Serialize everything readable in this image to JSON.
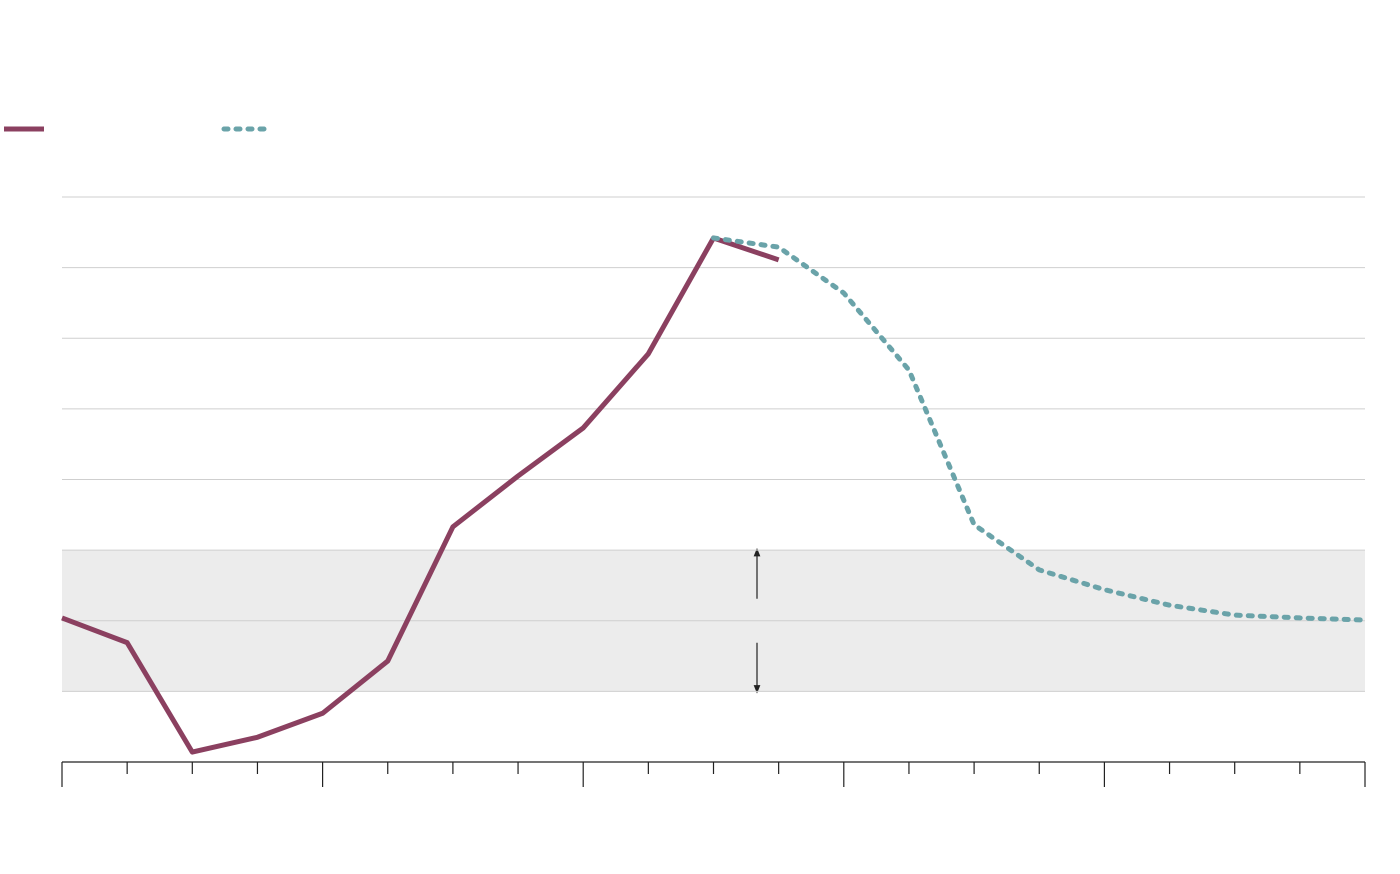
{
  "chart_data": {
    "type": "line",
    "x": [
      0,
      1,
      2,
      3,
      4,
      5,
      6,
      7,
      8,
      9,
      10,
      11,
      12,
      13,
      14,
      15,
      16,
      17,
      18,
      19,
      20
    ],
    "series": [
      {
        "color": "#8b4060",
        "style": "solid",
        "values": [
          2.04,
          1.69,
          0.14,
          0.35,
          0.69,
          1.43,
          3.33,
          4.05,
          4.73,
          5.78,
          7.42,
          7.11,
          null,
          null,
          null,
          null,
          null,
          null,
          null,
          null,
          null
        ]
      },
      {
        "color": "#6aa3a9",
        "style": "dotted",
        "values": [
          null,
          null,
          null,
          null,
          null,
          null,
          null,
          null,
          null,
          null,
          7.42,
          7.29,
          6.64,
          5.55,
          3.36,
          2.72,
          2.44,
          2.22,
          2.08,
          2.04,
          2.01
        ]
      }
    ],
    "xlim": [
      0,
      20
    ],
    "xticks": [
      0,
      1,
      2,
      3,
      4,
      5,
      6,
      7,
      8,
      9,
      10,
      11,
      12,
      13,
      14,
      15,
      16,
      17,
      18,
      19,
      20
    ],
    "xticks_major": [
      0,
      4,
      8,
      12,
      16,
      20
    ],
    "ylim": [
      0,
      8
    ],
    "yticks": [
      1,
      2,
      3,
      4,
      5,
      6,
      7,
      8
    ],
    "shaded_range": [
      1,
      3
    ],
    "grid": true,
    "legend": "top-left"
  }
}
